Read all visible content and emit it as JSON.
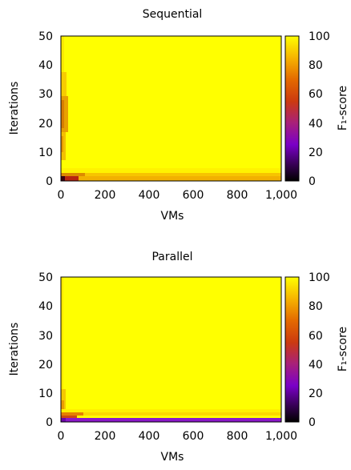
{
  "chart_data": [
    {
      "type": "heatmap",
      "title": "Sequential",
      "xlabel": "VMs",
      "ylabel": "Iterations",
      "xlim": [
        0,
        1000
      ],
      "ylim": [
        0,
        50
      ],
      "xticks": [
        "0",
        "200",
        "400",
        "600",
        "800",
        "1,000"
      ],
      "yticks": [
        "0",
        "10",
        "20",
        "30",
        "40",
        "50"
      ],
      "colorbar": {
        "label": "F₁-score",
        "range": [
          0,
          100
        ],
        "ticks": [
          "0",
          "20",
          "40",
          "60",
          "80",
          "100"
        ],
        "colormap": "gnuplot-pm3d (black-purple-red-orange-yellow)"
      },
      "value_summary": {
        "background": 100,
        "bottom_row_left_corner": 5,
        "bottom_row_right": 85,
        "left_column_mid": 80,
        "left_column_top": 93
      }
    },
    {
      "type": "heatmap",
      "title": "Parallel",
      "xlabel": "VMs",
      "ylabel": "Iterations",
      "xlim": [
        0,
        1000
      ],
      "ylim": [
        0,
        50
      ],
      "xticks": [
        "0",
        "200",
        "400",
        "600",
        "800",
        "1,000"
      ],
      "yticks": [
        "0",
        "10",
        "20",
        "30",
        "40",
        "50"
      ],
      "colorbar": {
        "label": "F₁-score",
        "range": [
          0,
          100
        ],
        "ticks": [
          "0",
          "20",
          "40",
          "60",
          "80",
          "100"
        ],
        "colormap": "gnuplot-pm3d (black-purple-red-orange-yellow)"
      },
      "value_summary": {
        "background": 100,
        "bottom_row": 32,
        "second_row_left": 70,
        "left_column": 90
      }
    }
  ]
}
